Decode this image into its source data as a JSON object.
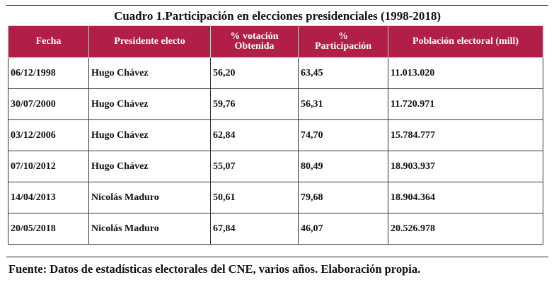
{
  "caption": "Cuadro 1.Participación en elecciones presidenciales (1998-2018)",
  "columns": [
    {
      "line1": "Fecha",
      "line2": ""
    },
    {
      "line1": "Presidente electo",
      "line2": ""
    },
    {
      "line1": "% votación",
      "line2": "Obtenida"
    },
    {
      "line1": "%",
      "line2": "Participación"
    },
    {
      "line1": "Población electoral (mill)",
      "line2": ""
    }
  ],
  "rows": [
    [
      "06/12/1998",
      "Hugo Chávez",
      "56,20",
      "63,45",
      "11.013.020"
    ],
    [
      "30/07/2000",
      "Hugo Chávez",
      "59,76",
      "56,31",
      "11.720.971"
    ],
    [
      "03/12/2006",
      "Hugo Chávez",
      "62,84",
      "74,70",
      "15.784.777"
    ],
    [
      "07/10/2012",
      "Hugo Chávez",
      "55,07",
      "80,49",
      "18.903.937"
    ],
    [
      "14/04/2013",
      "Nicolás Maduro",
      "50,61",
      "79,68",
      "18.904.364"
    ],
    [
      "20/05/2018",
      "Nicolás Maduro",
      "67,84",
      "46,07",
      "20.526.978"
    ]
  ],
  "source": "Fuente: Datos de estadísticas electorales del CNE, varios años. Elaboración propia.",
  "colors": {
    "header_bg": "#b21f46",
    "header_text": "#ffffff"
  }
}
